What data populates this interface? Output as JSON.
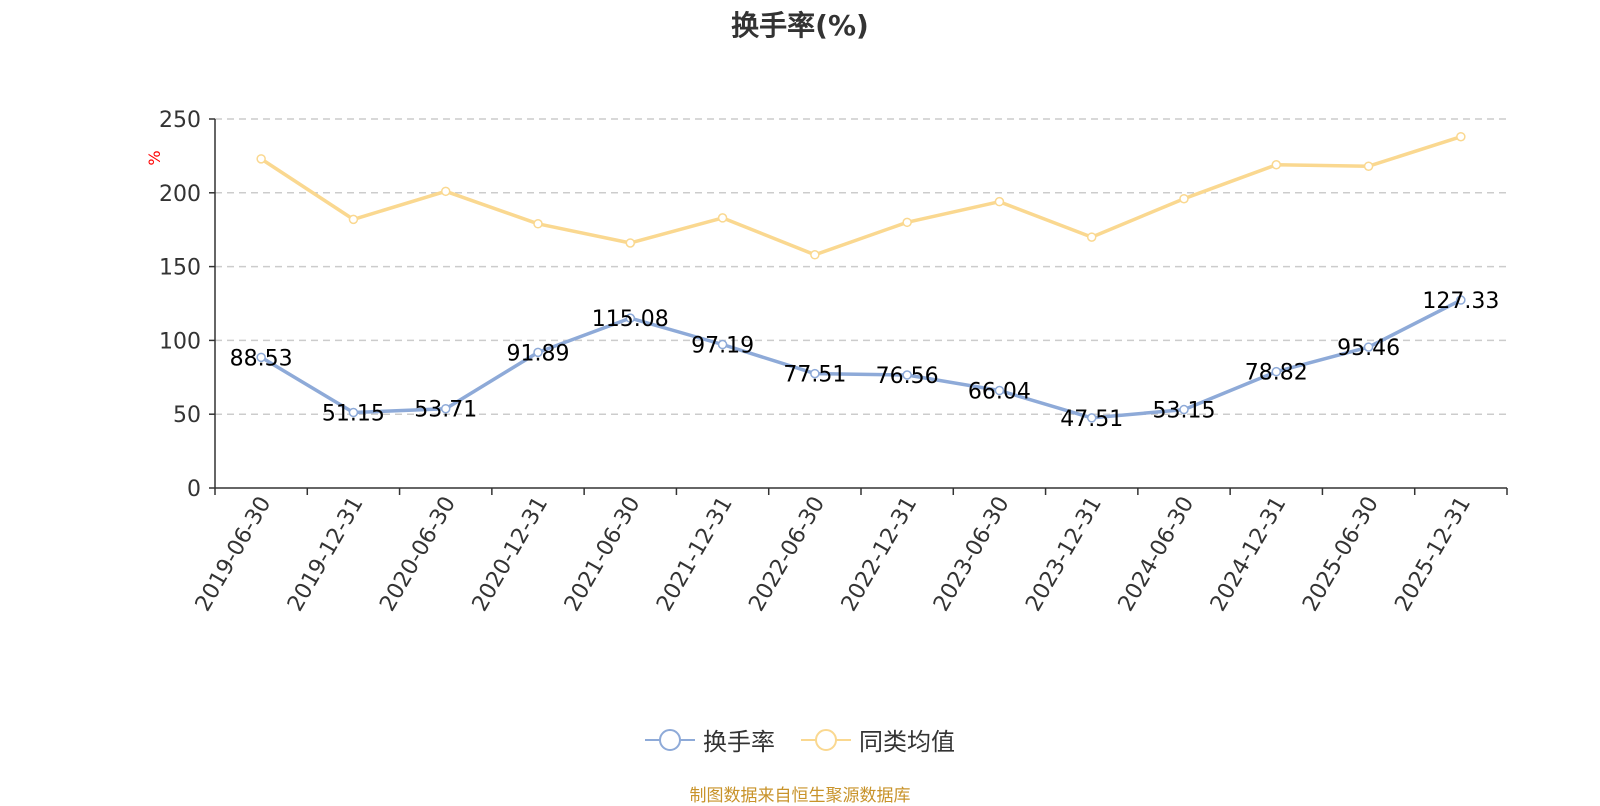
{
  "colors": {
    "series_primary": "#8eaad8",
    "series_secondary": "#fad890",
    "axis": "#333333",
    "grid": "#cccccc",
    "tick_text": "#333333",
    "unit_label": "#ff0000",
    "source_note": "#c8932a"
  },
  "legend": {
    "items": [
      {
        "label": "换手率",
        "icon": "circle-line-icon"
      },
      {
        "label": "同类均值",
        "icon": "circle-line-icon"
      }
    ]
  },
  "source_note": "制图数据来自恒生聚源数据库",
  "chart_data": {
    "type": "line",
    "title": "换手率(%)",
    "ylabel": "%",
    "xlabel": "",
    "ylim": [
      0,
      250
    ],
    "yticks": [
      0,
      50,
      100,
      150,
      200,
      250
    ],
    "grid": true,
    "legend_position": "bottom-center",
    "categories": [
      "2019-06-30",
      "2019-12-31",
      "2020-06-30",
      "2020-12-31",
      "2021-06-30",
      "2021-12-31",
      "2022-06-30",
      "2022-12-31",
      "2023-06-30",
      "2023-12-31",
      "2024-06-30",
      "2024-12-31",
      "2025-06-30",
      "2025-12-31"
    ],
    "series": [
      {
        "name": "换手率",
        "values": [
          88.53,
          51.15,
          53.71,
          91.89,
          115.08,
          97.19,
          77.51,
          76.56,
          66.04,
          47.51,
          53.15,
          78.82,
          95.46,
          127.33
        ],
        "data_labels": [
          "88.53",
          "51.15",
          "53.71",
          "91.89",
          "115.08",
          "97.19",
          "77.51",
          "76.56",
          "66.04",
          "47.51",
          "53.15",
          "78.82",
          "95.46",
          "127.33"
        ],
        "show_labels": true
      },
      {
        "name": "同类均值",
        "values": [
          223,
          182,
          201,
          179,
          166,
          183,
          158,
          180,
          194,
          170,
          196,
          219,
          218,
          238
        ],
        "show_labels": false
      }
    ]
  }
}
